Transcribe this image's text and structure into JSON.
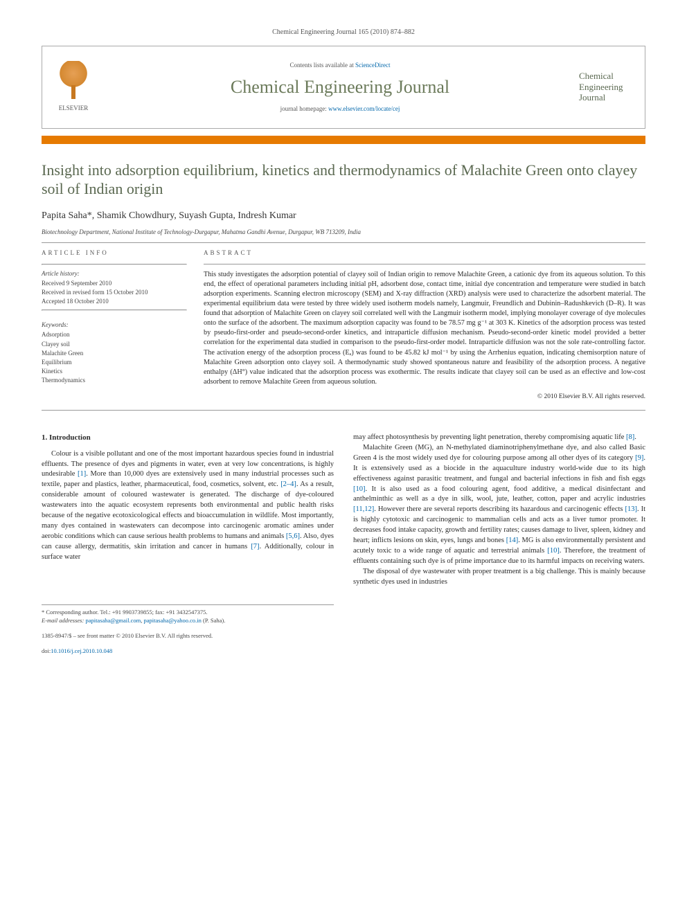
{
  "header": {
    "citation": "Chemical Engineering Journal 165 (2010) 874–882",
    "contents_prefix": "Contents lists available at ",
    "contents_link": "ScienceDirect",
    "journal_name": "Chemical Engineering Journal",
    "homepage_prefix": "journal homepage: ",
    "homepage_url": "www.elsevier.com/locate/cej",
    "publisher_brand": "ELSEVIER",
    "cover_text": "Chemical Engineering Journal"
  },
  "colors": {
    "accent_orange": "#e67a00",
    "title_olive": "#5a6850",
    "link_blue": "#0066aa"
  },
  "article": {
    "title": "Insight into adsorption equilibrium, kinetics and thermodynamics of Malachite Green onto clayey soil of Indian origin",
    "authors": "Papita Saha*, Shamik Chowdhury, Suyash Gupta, Indresh Kumar",
    "affiliation": "Biotechnology Department, National Institute of Technology-Durgapur, Mahatma Gandhi Avenue, Durgapur, WB 713209, India"
  },
  "info": {
    "head": "article info",
    "history_label": "Article history:",
    "history": [
      "Received 9 September 2010",
      "Received in revised form 15 October 2010",
      "Accepted 18 October 2010"
    ],
    "keywords_label": "Keywords:",
    "keywords": [
      "Adsorption",
      "Clayey soil",
      "Malachite Green",
      "Equilibrium",
      "Kinetics",
      "Thermodynamics"
    ]
  },
  "abstract": {
    "head": "abstract",
    "text": "This study investigates the adsorption potential of clayey soil of Indian origin to remove Malachite Green, a cationic dye from its aqueous solution. To this end, the effect of operational parameters including initial pH, adsorbent dose, contact time, initial dye concentration and temperature were studied in batch adsorption experiments. Scanning electron microscopy (SEM) and X-ray diffraction (XRD) analysis were used to characterize the adsorbent material. The experimental equilibrium data were tested by three widely used isotherm models namely, Langmuir, Freundlich and Dubinin–Radushkevich (D–R). It was found that adsorption of Malachite Green on clayey soil correlated well with the Langmuir isotherm model, implying monolayer coverage of dye molecules onto the surface of the adsorbent. The maximum adsorption capacity was found to be 78.57 mg g⁻¹ at 303 K. Kinetics of the adsorption process was tested by pseudo-first-order and pseudo-second-order kinetics, and intraparticle diffusion mechanism. Pseudo-second-order kinetic model provided a better correlation for the experimental data studied in comparison to the pseudo-first-order model. Intraparticle diffusion was not the sole rate-controlling factor. The activation energy of the adsorption process (Eₐ) was found to be 45.82 kJ mol⁻¹ by using the Arrhenius equation, indicating chemisorption nature of Malachite Green adsorption onto clayey soil. A thermodynamic study showed spontaneous nature and feasibility of the adsorption process. A negative enthalpy (ΔH°) value indicated that the adsorption process was exothermic. The results indicate that clayey soil can be used as an effective and low-cost adsorbent to remove Malachite Green from aqueous solution.",
    "copyright": "© 2010 Elsevier B.V. All rights reserved."
  },
  "body": {
    "section_num": "1.",
    "section_title": "Introduction",
    "col1_p1": "Colour is a visible pollutant and one of the most important hazardous species found in industrial effluents. The presence of dyes and pigments in water, even at very low concentrations, is highly undesirable [1]. More than 10,000 dyes are extensively used in many industrial processes such as textile, paper and plastics, leather, pharmaceutical, food, cosmetics, solvent, etc. [2–4]. As a result, considerable amount of coloured wastewater is generated. The discharge of dye-coloured wastewaters into the aquatic ecosystem represents both environmental and public health risks because of the negative ecotoxicological effects and bioaccumulation in wildlife. Most importantly, many dyes contained in wastewaters can decompose into carcinogenic aromatic amines under aerobic conditions which can cause serious health problems to humans and animals [5,6]. Also, dyes can cause allergy, dermatitis, skin irritation and cancer in humans [7]. Additionally, colour in surface water",
    "col2_p1": "may affect photosynthesis by preventing light penetration, thereby compromising aquatic life [8].",
    "col2_p2": "Malachite Green (MG), an N-methylated diaminotriphenylmethane dye, and also called Basic Green 4 is the most widely used dye for colouring purpose among all other dyes of its category [9]. It is extensively used as a biocide in the aquaculture industry world-wide due to its high effectiveness against parasitic treatment, and fungal and bacterial infections in fish and fish eggs [10]. It is also used as a food colouring agent, food additive, a medical disinfectant and anthelminthic as well as a dye in silk, wool, jute, leather, cotton, paper and acrylic industries [11,12]. However there are several reports describing its hazardous and carcinogenic effects [13]. It is highly cytotoxic and carcinogenic to mammalian cells and acts as a liver tumor promoter. It decreases food intake capacity, growth and fertility rates; causes damage to liver, spleen, kidney and heart; inflicts lesions on skin, eyes, lungs and bones [14]. MG is also environmentally persistent and acutely toxic to a wide range of aquatic and terrestrial animals [10]. Therefore, the treatment of effluents containing such dye is of prime importance due to its harmful impacts on receiving waters.",
    "col2_p3": "The disposal of dye wastewater with proper treatment is a big challenge. This is mainly because synthetic dyes used in industries"
  },
  "footnotes": {
    "corr": "* Corresponding author. Tel.: +91 9903739855; fax: +91 3432547375.",
    "email_label": "E-mail addresses: ",
    "email1": "papitasaha@gmail.com",
    "email2": "papitasaha@yahoo.co.in",
    "email_suffix": " (P. Saha)."
  },
  "footer": {
    "issn": "1385-8947/$ – see front matter © 2010 Elsevier B.V. All rights reserved.",
    "doi_label": "doi:",
    "doi": "10.1016/j.cej.2010.10.048"
  }
}
